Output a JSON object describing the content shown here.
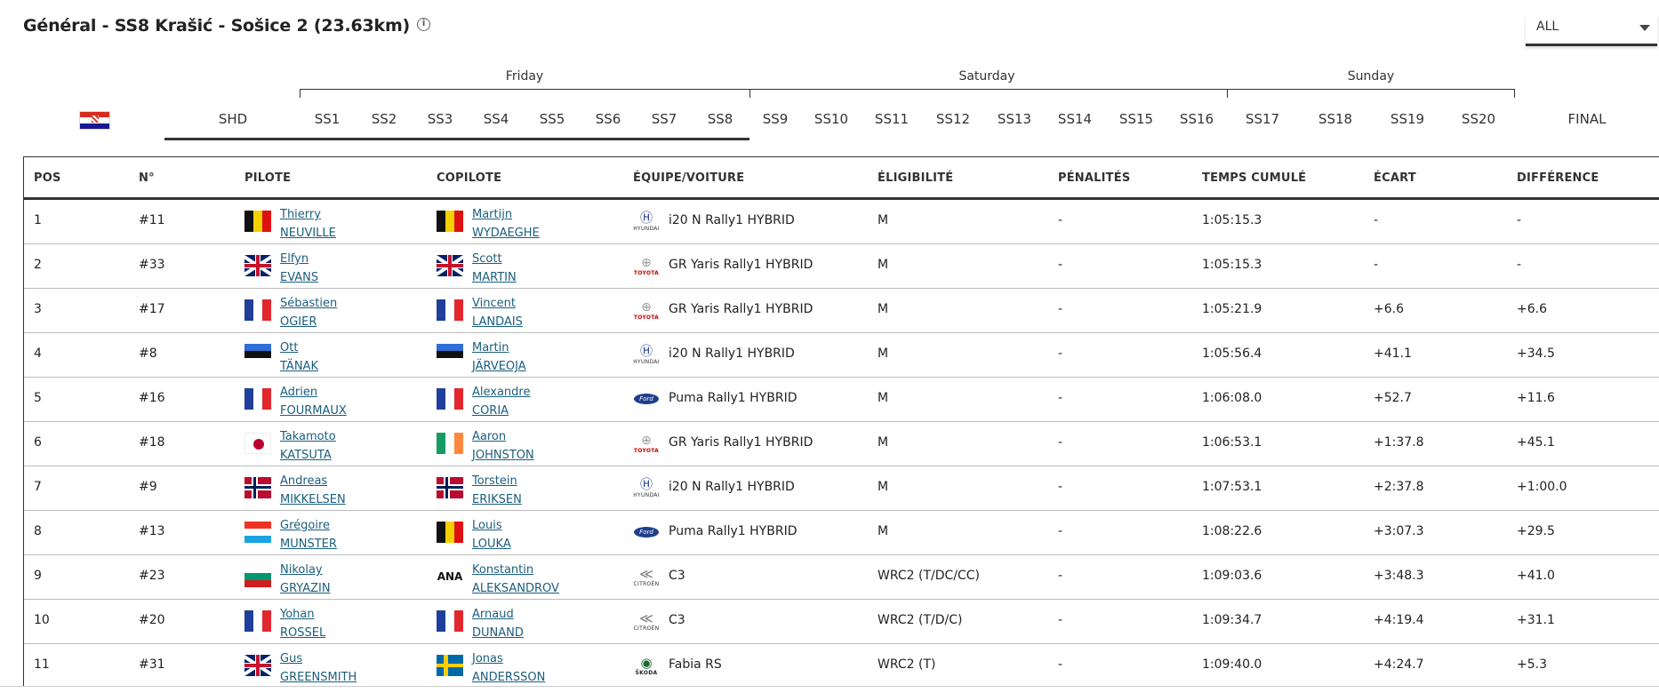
{
  "header": {
    "title": "Général - SS8 Krašić - Sošice 2 (23.63km)",
    "info_icon": "info-icon",
    "filter_value": "ALL"
  },
  "days": [
    "Friday",
    "Saturday",
    "Sunday"
  ],
  "stages": [
    "SHD",
    "SS1",
    "SS2",
    "SS3",
    "SS4",
    "SS5",
    "SS6",
    "SS7",
    "SS8",
    "SS9",
    "SS10",
    "SS11",
    "SS12",
    "SS13",
    "SS14",
    "SS15",
    "SS16",
    "SS17",
    "SS18",
    "SS19",
    "SS20",
    "FINAL"
  ],
  "columns": {
    "pos": "POS",
    "num": "N°",
    "pilote": "PILOTE",
    "copilote": "COPILOTE",
    "equipe": "ÉQUIPE/VOITURE",
    "eligibilite": "ÉLIGIBILITÉ",
    "penalites": "PÉNALITÉS",
    "temps": "TEMPS CUMULÉ",
    "ecart": "ÉCART",
    "difference": "DIFFÉRENCE"
  },
  "rows": [
    {
      "pos": "1",
      "num": "#11",
      "d_first": "Thierry",
      "d_last": "NEUVILLE",
      "d_flag": "belgium",
      "c_first": "Martijn",
      "c_last": "WYDAEGHE",
      "c_flag": "belgium",
      "brand": "hyundai",
      "brand_text": "HYUNDAI",
      "car": "i20 N Rally1 HYBRID",
      "elig": "M",
      "pen": "-",
      "time": "1:05:15.3",
      "gap": "-",
      "diff": "-"
    },
    {
      "pos": "2",
      "num": "#33",
      "d_first": "Elfyn",
      "d_last": "EVANS",
      "d_flag": "uk",
      "c_first": "Scott",
      "c_last": "MARTIN",
      "c_flag": "uk",
      "brand": "toyota",
      "brand_text": "TOYOTA",
      "car": "GR Yaris Rally1 HYBRID",
      "elig": "M",
      "pen": "-",
      "time": "1:05:15.3",
      "gap": "-",
      "diff": "-"
    },
    {
      "pos": "3",
      "num": "#17",
      "d_first": "Sébastien",
      "d_last": "OGIER",
      "d_flag": "france",
      "c_first": "Vincent",
      "c_last": "LANDAIS",
      "c_flag": "france",
      "brand": "toyota",
      "brand_text": "TOYOTA",
      "car": "GR Yaris Rally1 HYBRID",
      "elig": "M",
      "pen": "-",
      "time": "1:05:21.9",
      "gap": "+6.6",
      "diff": "+6.6"
    },
    {
      "pos": "4",
      "num": "#8",
      "d_first": "Ott",
      "d_last": "TÄNAK",
      "d_flag": "estonia",
      "c_first": "Martin",
      "c_last": "JÄRVEOJA",
      "c_flag": "estonia",
      "brand": "hyundai",
      "brand_text": "HYUNDAI",
      "car": "i20 N Rally1 HYBRID",
      "elig": "M",
      "pen": "-",
      "time": "1:05:56.4",
      "gap": "+41.1",
      "diff": "+34.5"
    },
    {
      "pos": "5",
      "num": "#16",
      "d_first": "Adrien",
      "d_last": "FOURMAUX",
      "d_flag": "france",
      "c_first": "Alexandre",
      "c_last": "CORIA",
      "c_flag": "france",
      "brand": "ford",
      "brand_text": "Ford",
      "car": "Puma Rally1 HYBRID",
      "elig": "M",
      "pen": "-",
      "time": "1:06:08.0",
      "gap": "+52.7",
      "diff": "+11.6"
    },
    {
      "pos": "6",
      "num": "#18",
      "d_first": "Takamoto",
      "d_last": "KATSUTA",
      "d_flag": "japan",
      "c_first": "Aaron",
      "c_last": "JOHNSTON",
      "c_flag": "ireland",
      "brand": "toyota",
      "brand_text": "TOYOTA",
      "car": "GR Yaris Rally1 HYBRID",
      "elig": "M",
      "pen": "-",
      "time": "1:06:53.1",
      "gap": "+1:37.8",
      "diff": "+45.1"
    },
    {
      "pos": "7",
      "num": "#9",
      "d_first": "Andreas",
      "d_last": "MIKKELSEN",
      "d_flag": "norway",
      "c_first": "Torstein",
      "c_last": "ERIKSEN",
      "c_flag": "norway",
      "brand": "hyundai",
      "brand_text": "HYUNDAI",
      "car": "i20 N Rally1 HYBRID",
      "elig": "M",
      "pen": "-",
      "time": "1:07:53.1",
      "gap": "+2:37.8",
      "diff": "+1:00.0"
    },
    {
      "pos": "8",
      "num": "#13",
      "d_first": "Grégoire",
      "d_last": "MUNSTER",
      "d_flag": "luxembourg",
      "c_first": "Louis",
      "c_last": "LOUKA",
      "c_flag": "belgium",
      "brand": "ford",
      "brand_text": "Ford",
      "car": "Puma Rally1 HYBRID",
      "elig": "M",
      "pen": "-",
      "time": "1:08:22.6",
      "gap": "+3:07.3",
      "diff": "+29.5"
    },
    {
      "pos": "9",
      "num": "#23",
      "d_first": "Nikolay",
      "d_last": "GRYAZIN",
      "d_flag": "bulgaria",
      "c_first": "Konstantin",
      "c_last": "ALEKSANDROV",
      "c_flag": "ana",
      "c_flag_text": "ANA",
      "brand": "citroen",
      "brand_text": "CITROËN",
      "car": "C3",
      "elig": "WRC2 (T/DC/CC)",
      "pen": "-",
      "time": "1:09:03.6",
      "gap": "+3:48.3",
      "diff": "+41.0"
    },
    {
      "pos": "10",
      "num": "#20",
      "d_first": "Yohan",
      "d_last": "ROSSEL",
      "d_flag": "france",
      "c_first": "Arnaud",
      "c_last": "DUNAND",
      "c_flag": "france",
      "brand": "citroen",
      "brand_text": "CITROËN",
      "car": "C3",
      "elig": "WRC2 (T/D/C)",
      "pen": "-",
      "time": "1:09:34.7",
      "gap": "+4:19.4",
      "diff": "+31.1"
    },
    {
      "pos": "11",
      "num": "#31",
      "d_first": "Gus",
      "d_last": "GREENSMITH",
      "d_flag": "uk",
      "c_first": "Jonas",
      "c_last": "ANDERSSON",
      "c_flag": "sweden",
      "brand": "skoda",
      "brand_text": "ŠKODA",
      "car": "Fabia RS",
      "elig": "WRC2 (T)",
      "pen": "-",
      "time": "1:09:40.0",
      "gap": "+4:24.7",
      "diff": "+5.3"
    }
  ]
}
